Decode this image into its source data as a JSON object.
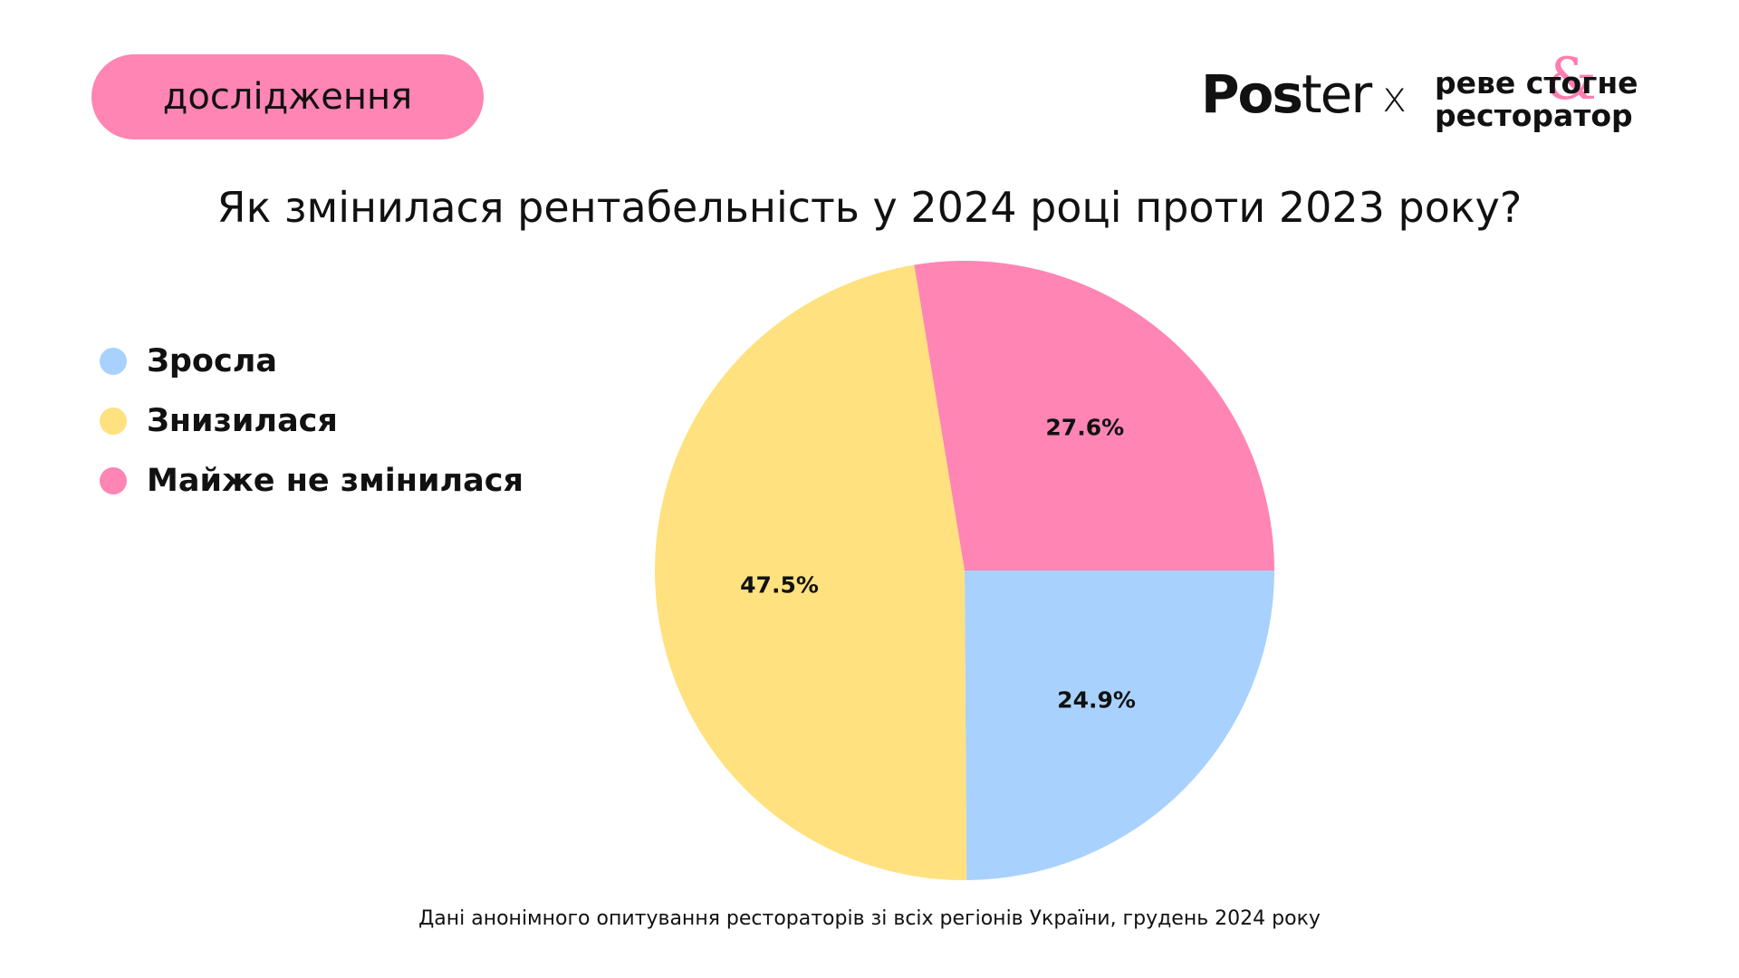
{
  "badge": {
    "label": "дослідження"
  },
  "brand": {
    "poster_bold": "Pos",
    "poster_light": "ter",
    "separator": "x",
    "partner_line1": "реве стогне",
    "partner_line2": "ресторатор",
    "partner_ampersand": "&"
  },
  "colors": {
    "blue": "#a8d2fd",
    "yellow": "#ffe17f",
    "pink": "#ff85b4"
  },
  "chart_data": {
    "type": "pie",
    "title": "Як змінилася рентабельність у 2024 році проти 2023 року?",
    "labels": [
      "Зросла",
      "Знизилася",
      "Майже не змінилася"
    ],
    "values": [
      24.9,
      47.5,
      27.6
    ],
    "value_labels": [
      "24.9%",
      "47.5%",
      "27.6%"
    ],
    "colors": [
      "#a8d2fd",
      "#ffe17f",
      "#ff85b4"
    ],
    "legend_position": "left",
    "start_angle_deg": 90,
    "direction": "clockwise"
  },
  "footnote": "Дані анонімного опитування рестораторів зі всіх регіонів України, грудень 2024 року"
}
